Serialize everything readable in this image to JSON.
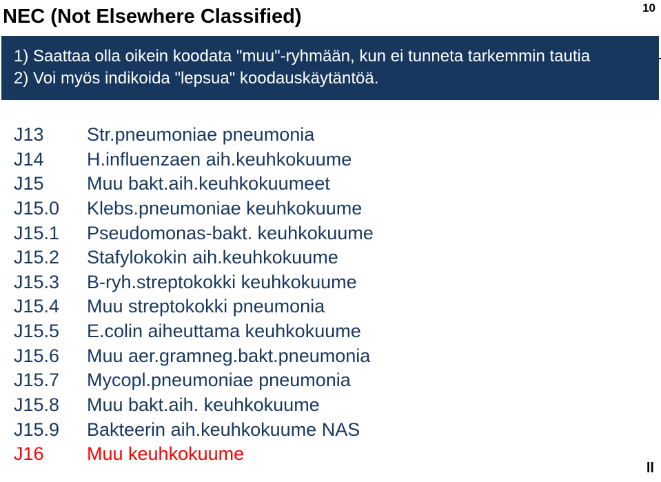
{
  "title": "NEC (Not Elsewhere Classified)",
  "page_number": "10",
  "box": {
    "line1": "1) Saattaa olla oikein koodata \"muu\"-ryhmään, kun ei tunneta tarkemmin tautia",
    "line2": "2) Voi myös indikoida \"lepsua\" koodauskäytäntöä."
  },
  "codes": [
    {
      "k": "J13",
      "v": "Str.pneumoniae pneumonia",
      "red": false
    },
    {
      "k": "J14",
      "v": "H.influenzaen aih.keuhkokuume",
      "red": false
    },
    {
      "k": "J15",
      "v": "Muu bakt.aih.keuhkokuumeet",
      "red": false
    },
    {
      "k": "J15.0",
      "v": "Klebs.pneumoniae keuhkokuume",
      "red": false
    },
    {
      "k": "J15.1",
      "v": "Pseudomonas-bakt. keuhkokuume",
      "red": false
    },
    {
      "k": "J15.2",
      "v": "Stafylokokin aih.keuhkokuume",
      "red": false
    },
    {
      "k": "J15.3",
      "v": "B-ryh.streptokokki keuhkokuume",
      "red": false
    },
    {
      "k": "J15.4",
      "v": "Muu streptokokki pneumonia",
      "red": false
    },
    {
      "k": "J15.5",
      "v": "E.colin aiheuttama keuhkokuume",
      "red": false
    },
    {
      "k": "J15.6",
      "v": "Muu aer.gramneg.bakt.pneumonia",
      "red": false
    },
    {
      "k": "J15.7",
      "v": "Mycopl.pneumoniae pneumonia",
      "red": false
    },
    {
      "k": "J15.8",
      "v": "Muu bakt.aih. keuhkokuume",
      "red": false
    },
    {
      "k": "J15.9",
      "v": "Bakteerin aih.keuhkokuume NAS",
      "red": false
    },
    {
      "k": "J16",
      "v": "Muu keuhkokuume",
      "red": true
    }
  ],
  "footer_fragment": "ll",
  "colors": {
    "box_bg": "#17375e",
    "text_blue": "#17375e",
    "text_red": "#ff0000",
    "bg": "#ffffff"
  }
}
